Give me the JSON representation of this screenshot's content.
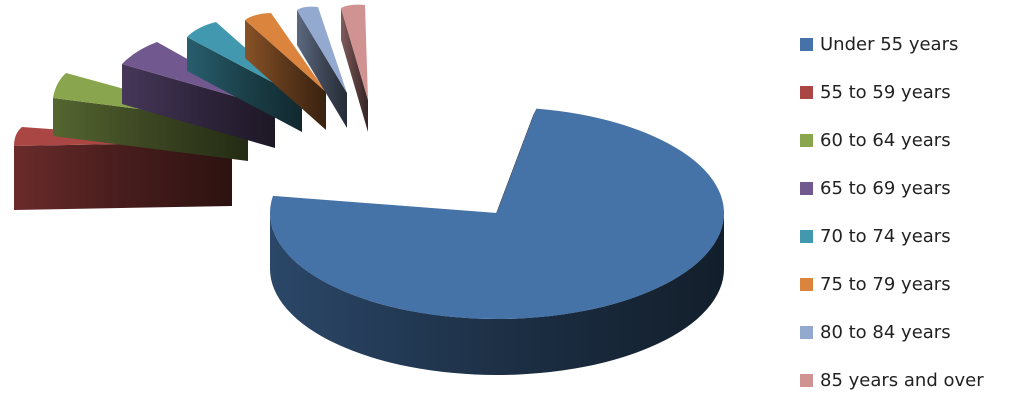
{
  "chart_data": {
    "type": "pie",
    "title": "",
    "style": "3d-exploded",
    "categories": [
      "Under 55 years",
      "55 to 59 years",
      "60 to 64 years",
      "65 to 69 years",
      "70 to 74 years",
      "75 to 79 years",
      "80 to 84 years",
      "85 years and over"
    ],
    "values": [
      74.8,
      5.7,
      5.0,
      4.2,
      3.4,
      3.0,
      2.2,
      1.7
    ],
    "unit": "%",
    "colors": [
      "#4572A7",
      "#AA4643",
      "#89A54E",
      "#71588F",
      "#4198AF",
      "#DB843D",
      "#93A9CF",
      "#D19392"
    ],
    "legend": {
      "position": "right"
    }
  }
}
